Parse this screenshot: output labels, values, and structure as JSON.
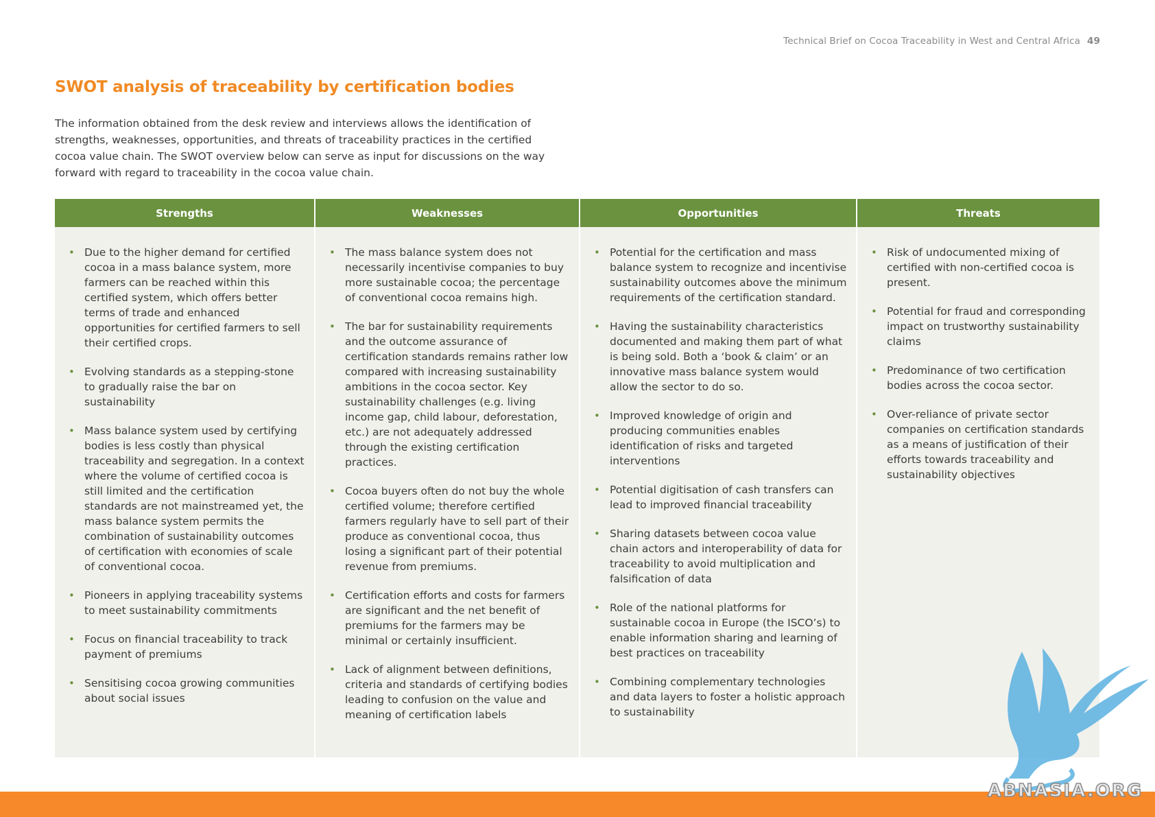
{
  "running_header": {
    "text": "Technical Brief on Cocoa Traceability in West and Central Africa",
    "page_number": "49"
  },
  "title": "SWOT analysis of traceability by certification bodies",
  "intro": "The information obtained from the desk review and interviews allows the identification of strengths, weaknesses, opportunities, and threats of traceability practices in the certified cocoa value chain. The SWOT overview below can serve as input for discussions on the way forward with regard to traceability in the cocoa value chain.",
  "swot": {
    "strengths": {
      "heading": "Strengths",
      "items": [
        "Due to the higher demand for certified cocoa in a mass balance system, more farmers can be reached within this certified system, which offers better terms of trade and enhanced opportunities for certified farmers to sell their certified crops.",
        "Evolving standards as a stepping-stone to gradually raise the bar on sustainability",
        "Mass balance system used by certifying bodies is less costly than physical traceability and segregation. In a context where the volume of certified cocoa is still limited and the certification standards are not mainstreamed yet, the mass balance system permits the combination of sustainability outcomes of certification with economies of scale of conventional cocoa.",
        "Pioneers in applying traceability systems to meet sustainability commitments",
        "Focus on financial traceability to track payment of premiums",
        "Sensitising cocoa growing communities about social issues"
      ]
    },
    "weaknesses": {
      "heading": "Weaknesses",
      "items": [
        "The mass balance system does not necessarily incentivise companies to buy more sustainable cocoa; the percentage of conventional cocoa remains high.",
        "The bar for sustainability requirements and the outcome assurance of certification standards remains rather low compared with increasing sustainability ambitions in the cocoa sector. Key sustainability challenges (e.g. living income gap, child labour, deforestation, etc.) are not adequately addressed through the existing certification practices.",
        "Cocoa buyers often do not buy the whole certified volume; therefore certified farmers regularly have to sell part of their produce as conventional cocoa, thus losing a significant part of their potential revenue from premiums.",
        "Certification efforts and costs for farmers are significant and the net benefit of premiums for the farmers may be minimal or certainly insufficient.",
        "Lack of alignment between definitions, criteria and standards of certifying bodies leading to confusion on the value and meaning of certification labels"
      ]
    },
    "opportunities": {
      "heading": "Opportunities",
      "items": [
        "Potential for the certification and mass balance system to recognize and incentivise sustainability outcomes above the minimum requirements of the certification standard.",
        "Having the sustainability characteristics documented and making them part of what is being sold. Both a ‘book & claim’ or an innovative mass balance system would allow the sector to do so.",
        "Improved knowledge of origin and producing communities enables identification of risks and targeted interventions",
        "Potential digitisation of cash transfers can lead to improved financial traceability",
        "Sharing datasets between cocoa value chain actors and interoperability of data for traceability to avoid multiplication and falsification of data",
        "Role of the national platforms for sustainable cocoa in Europe (the ISCO’s) to enable information sharing and learning of best practices on traceability",
        "Combining complementary technologies and data layers to foster a holistic approach to sustainability"
      ]
    },
    "threats": {
      "heading": "Threats",
      "items": [
        "Risk of undocumented mixing of certified with non-certified cocoa is present.",
        "Potential for fraud and corresponding impact on trustworthy sustainability claims",
        "Predominance of two certification bodies across the cocoa sector.",
        "Over-reliance of private sector companies on certification standards as a means of justification of their efforts towards traceability and sustainability objectives"
      ]
    }
  },
  "watermark": {
    "text": "ABNASIA.ORG"
  },
  "colors": {
    "title_orange": "#f08a24",
    "header_green": "#6a923f",
    "panel_bg": "#f1f1ec",
    "footer_orange": "#f7892a",
    "watermark_blue": "#5bb0e0"
  }
}
